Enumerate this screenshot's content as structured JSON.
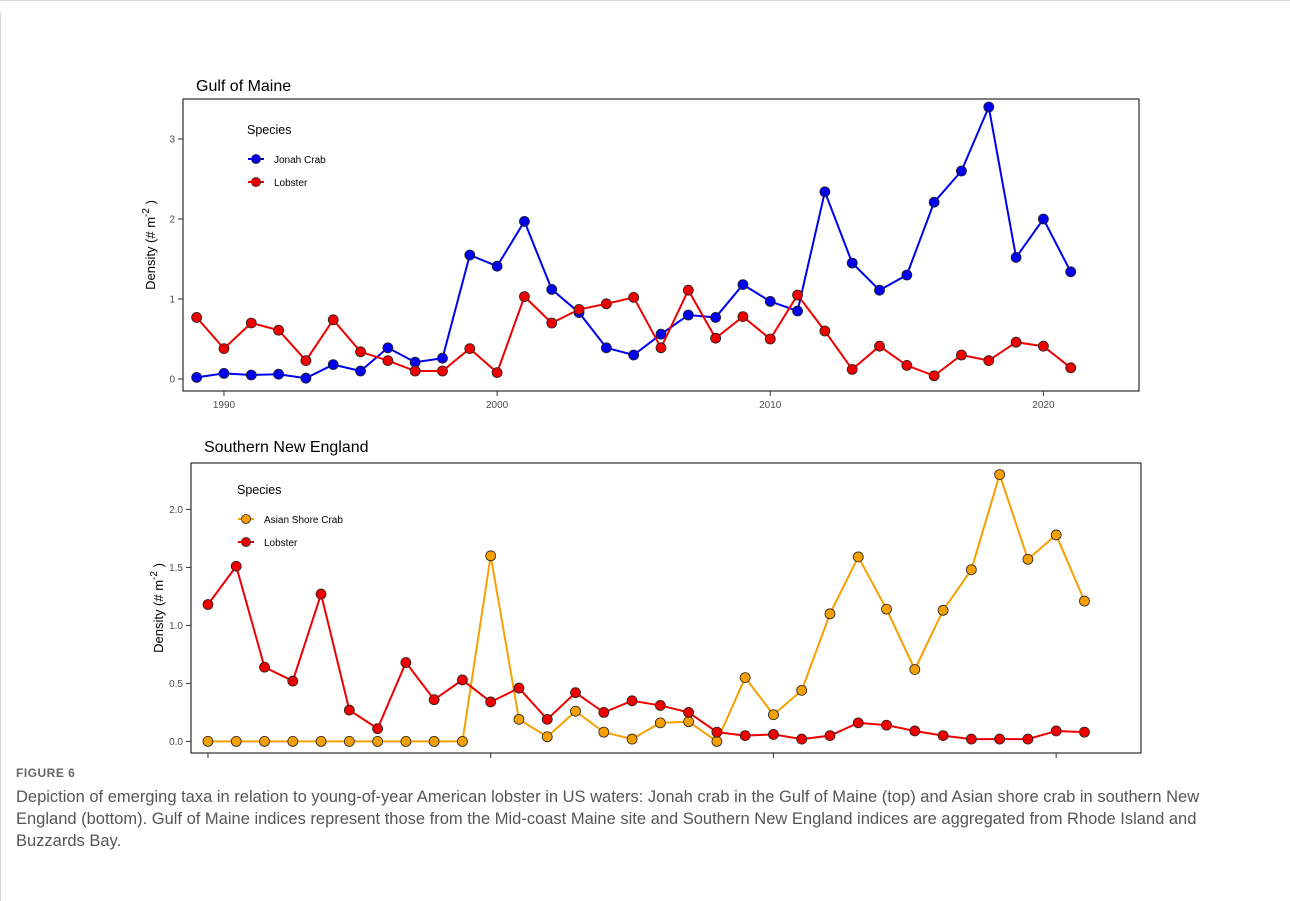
{
  "figure": {
    "label": "FIGURE 6",
    "caption": "Depiction of emerging taxa in relation to young-of-year American lobster in US waters: Jonah crab in the Gulf of Maine (top) and Asian shore crab in southern New England (bottom). Gulf of Maine indices represent those from the Mid-coast Maine site and Southern New England indices are aggregated from Rhode Island and Buzzards Bay."
  },
  "chart_data": [
    {
      "type": "line",
      "title": "Gulf of Maine",
      "xlabel": "",
      "ylabel": "Density (# m^-2)",
      "xlim": [
        1988.5,
        2023.5
      ],
      "ylim": [
        -0.15,
        3.5
      ],
      "xticks": [
        1990,
        2000,
        2010,
        2020
      ],
      "yticks": [
        0,
        1,
        2,
        3
      ],
      "grid": false,
      "legend": {
        "title": "Species",
        "placement": "top-left"
      },
      "x": [
        1989,
        1990,
        1991,
        1992,
        1993,
        1994,
        1995,
        1996,
        1997,
        1998,
        1999,
        2000,
        2001,
        2002,
        2003,
        2004,
        2005,
        2006,
        2007,
        2008,
        2009,
        2010,
        2011,
        2012,
        2013,
        2014,
        2015,
        2016,
        2017,
        2018,
        2019,
        2020,
        2021
      ],
      "series": [
        {
          "name": "Jonah Crab",
          "color": "#0000ee",
          "values": [
            0.02,
            0.07,
            0.05,
            0.06,
            0.01,
            0.18,
            0.1,
            0.39,
            0.21,
            0.26,
            1.55,
            1.41,
            1.97,
            1.12,
            0.83,
            0.39,
            0.3,
            0.56,
            0.8,
            0.77,
            1.18,
            0.97,
            0.85,
            2.34,
            1.45,
            1.11,
            1.3,
            2.21,
            2.6,
            3.4,
            1.52,
            2.0,
            1.34
          ]
        },
        {
          "name": "Lobster",
          "color": "#ee0000",
          "values": [
            0.77,
            0.38,
            0.7,
            0.61,
            0.23,
            0.74,
            0.34,
            0.23,
            0.1,
            0.1,
            0.38,
            0.08,
            1.03,
            0.7,
            0.87,
            0.94,
            1.02,
            0.39,
            1.11,
            0.51,
            0.78,
            0.5,
            1.05,
            0.6,
            0.12,
            0.41,
            0.17,
            0.04,
            0.3,
            0.23,
            0.46,
            0.41,
            0.14
          ]
        }
      ]
    },
    {
      "type": "line",
      "title": "Southern New England",
      "xlabel": "",
      "ylabel": "Density (# m^-2)",
      "xlim": [
        1989.4,
        2023.0
      ],
      "ylim": [
        -0.1,
        2.4
      ],
      "xticks": [
        1990,
        2000,
        2010,
        2020
      ],
      "yticks": [
        0.0,
        0.5,
        1.0,
        1.5,
        2.0
      ],
      "grid": false,
      "legend": {
        "title": "Species",
        "placement": "top-left"
      },
      "x": [
        1990,
        1991,
        1992,
        1993,
        1994,
        1995,
        1996,
        1997,
        1998,
        1999,
        2000,
        2001,
        2002,
        2003,
        2004,
        2005,
        2006,
        2007,
        2008,
        2009,
        2010,
        2011,
        2012,
        2013,
        2014,
        2015,
        2016,
        2017,
        2018,
        2019,
        2020,
        2021
      ],
      "series": [
        {
          "name": "Asian Shore Crab",
          "color": "#f5a000",
          "values": [
            0,
            0,
            0,
            0,
            0,
            0,
            0,
            0,
            0,
            0,
            1.6,
            0.19,
            0.04,
            0.26,
            0.08,
            0.02,
            0.16,
            0.17,
            0.0,
            0.55,
            0.23,
            0.44,
            1.1,
            1.59,
            1.14,
            0.62,
            1.13,
            1.48,
            2.3,
            1.57,
            1.78,
            1.21
          ]
        },
        {
          "name": "Lobster",
          "color": "#ee0000",
          "values": [
            1.18,
            1.51,
            0.64,
            0.52,
            1.27,
            0.27,
            0.11,
            0.68,
            0.36,
            0.53,
            0.34,
            0.46,
            0.19,
            0.42,
            0.25,
            0.35,
            0.31,
            0.25,
            0.08,
            0.05,
            0.06,
            0.02,
            0.05,
            0.16,
            0.14,
            0.09,
            0.05,
            0.02,
            0.02,
            0.02,
            0.09,
            0.08
          ]
        }
      ]
    }
  ]
}
